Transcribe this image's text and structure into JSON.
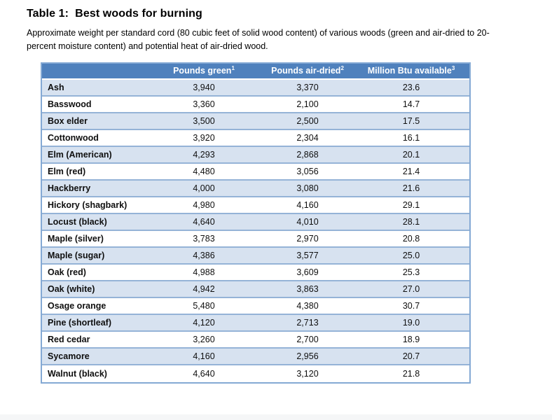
{
  "title": "Table 1:  Best woods for burning",
  "caption": {
    "line1": "Approximate weight per standard cord (80 cubic feet of solid wood content) of various woods (green and air-dried to 20-",
    "line2": "percent moisture content) and potential heat of air-dried wood."
  },
  "table": {
    "columns": [
      {
        "label": "",
        "superscript": ""
      },
      {
        "label": "Pounds green",
        "superscript": "1"
      },
      {
        "label": "Pounds air-dried",
        "superscript": "2"
      },
      {
        "label": "Million Btu available",
        "superscript": "3"
      }
    ],
    "rows": [
      [
        "Ash",
        "3,940",
        "3,370",
        "23.6"
      ],
      [
        "Basswood",
        "3,360",
        "2,100",
        "14.7"
      ],
      [
        "Box elder",
        "3,500",
        "2,500",
        "17.5"
      ],
      [
        "Cottonwood",
        "3,920",
        "2,304",
        "16.1"
      ],
      [
        "Elm (American)",
        "4,293",
        "2,868",
        "20.1"
      ],
      [
        "Elm (red)",
        "4,480",
        "3,056",
        "21.4"
      ],
      [
        "Hackberry",
        "4,000",
        "3,080",
        "21.6"
      ],
      [
        "Hickory (shagbark)",
        "4,980",
        "4,160",
        "29.1"
      ],
      [
        "Locust (black)",
        "4,640",
        "4,010",
        "28.1"
      ],
      [
        "Maple (silver)",
        "3,783",
        "2,970",
        "20.8"
      ],
      [
        "Maple (sugar)",
        "4,386",
        "3,577",
        "25.0"
      ],
      [
        "Oak (red)",
        "4,988",
        "3,609",
        "25.3"
      ],
      [
        "Oak (white)",
        "4,942",
        "3,863",
        "27.0"
      ],
      [
        "Osage orange",
        "5,480",
        "4,380",
        "30.7"
      ],
      [
        "Pine (shortleaf)",
        "4,120",
        "2,713",
        "19.0"
      ],
      [
        "Red cedar",
        "3,260",
        "2,700",
        "18.9"
      ],
      [
        "Sycamore",
        "4,160",
        "2,956",
        "20.7"
      ],
      [
        "Walnut (black)",
        "4,640",
        "3,120",
        "21.8"
      ]
    ]
  },
  "colors": {
    "header_bg": "#4f81bd",
    "header_text": "#ffffff",
    "row_shaded_bg": "#d7e2f0",
    "row_plain_bg": "#ffffff",
    "inner_border": "#95b3d7",
    "outer_border": "#84a9d4"
  }
}
